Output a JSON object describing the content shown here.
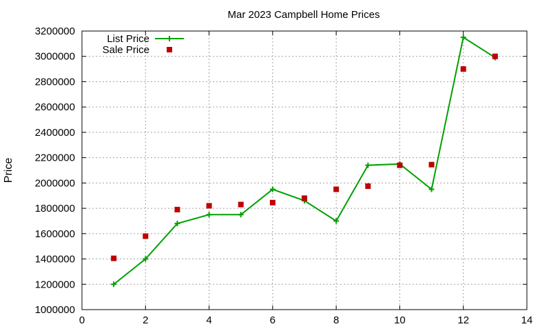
{
  "chart_data": {
    "type": "line",
    "title": "Mar 2023 Campbell Home Prices",
    "xlabel": "",
    "ylabel": "Price",
    "xlim": [
      0,
      14
    ],
    "ylim": [
      1000000,
      3200000
    ],
    "xticks": [
      0,
      2,
      4,
      6,
      8,
      10,
      12,
      14
    ],
    "yticks": [
      1000000,
      1200000,
      1400000,
      1600000,
      1800000,
      2000000,
      2200000,
      2400000,
      2600000,
      2800000,
      3000000,
      3200000
    ],
    "grid": true,
    "legend_position": "top-left",
    "series": [
      {
        "name": "List Price",
        "style": "line-with-plus-markers",
        "color": "#00a000",
        "x": [
          1,
          2,
          3,
          4,
          5,
          6,
          7,
          8,
          9,
          10,
          11,
          12,
          13
        ],
        "y": [
          1200000,
          1400000,
          1680000,
          1750000,
          1750000,
          1950000,
          1860000,
          1700000,
          2140000,
          2150000,
          1950000,
          3150000,
          2990000
        ]
      },
      {
        "name": "Sale Price",
        "style": "square-markers",
        "color": "#c00000",
        "x": [
          1,
          2,
          3,
          4,
          5,
          6,
          7,
          8,
          9,
          10,
          11,
          12,
          13
        ],
        "y": [
          1405000,
          1580000,
          1790000,
          1820000,
          1830000,
          1845000,
          1880000,
          1950000,
          1975000,
          2140000,
          2145000,
          2900000,
          3000000
        ]
      }
    ]
  }
}
